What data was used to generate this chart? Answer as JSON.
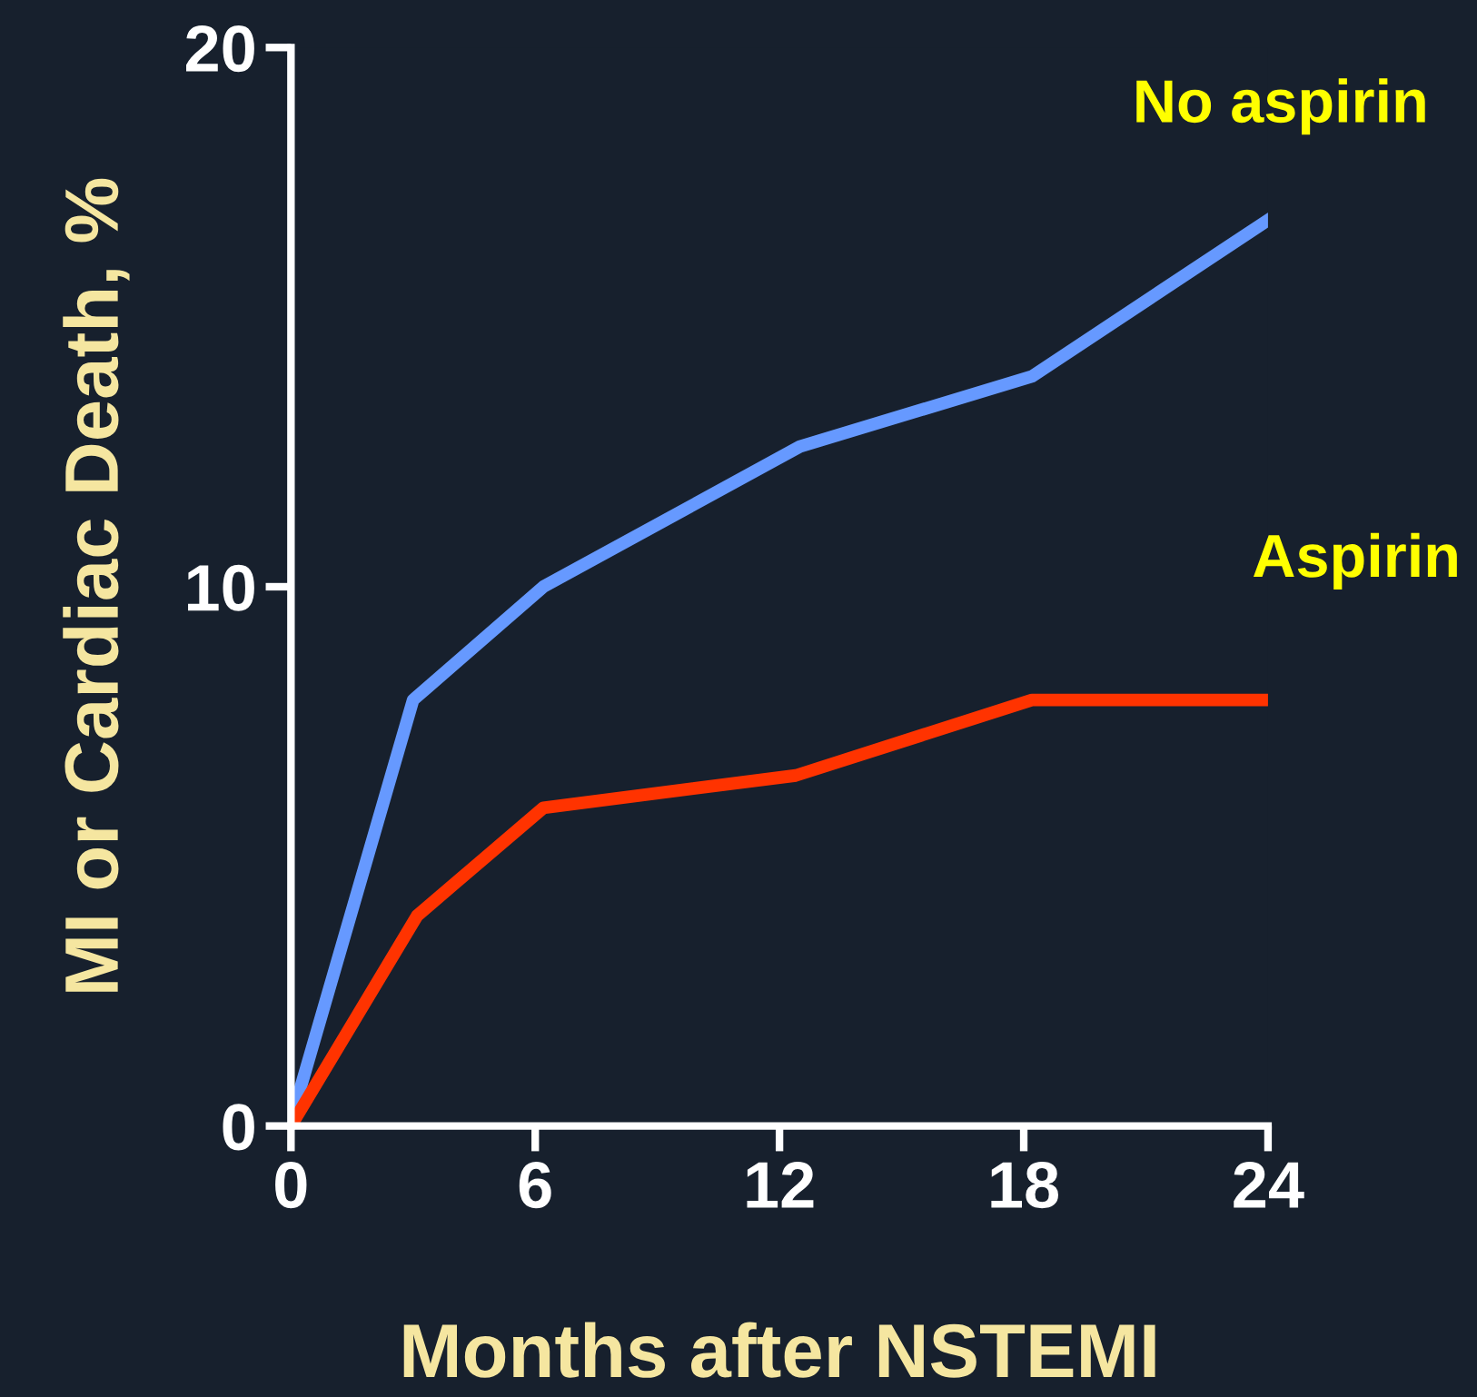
{
  "chart_data": {
    "type": "line",
    "xlabel": "Months after NSTEMI",
    "ylabel": "MI or Cardiac Death, %",
    "xlim": [
      0,
      24
    ],
    "ylim": [
      0,
      20
    ],
    "xticks": [
      0,
      6,
      12,
      18,
      24
    ],
    "yticks": [
      0,
      10,
      20
    ],
    "grid": false,
    "legend": false,
    "marker": "none",
    "line_style": "solid",
    "series": [
      {
        "name": "No aspirin",
        "color": "#6699ff",
        "x": [
          0,
          3.0,
          6.2,
          12.5,
          18.2,
          24
        ],
        "values": [
          0.1,
          7.9,
          10.0,
          12.6,
          13.9,
          16.8
        ]
      },
      {
        "name": "Aspirin",
        "color": "#ff3300",
        "x": [
          0,
          3.1,
          6.2,
          12.4,
          18.2,
          24
        ],
        "values": [
          0,
          3.9,
          5.9,
          6.5,
          7.9,
          7.9
        ]
      }
    ]
  }
}
